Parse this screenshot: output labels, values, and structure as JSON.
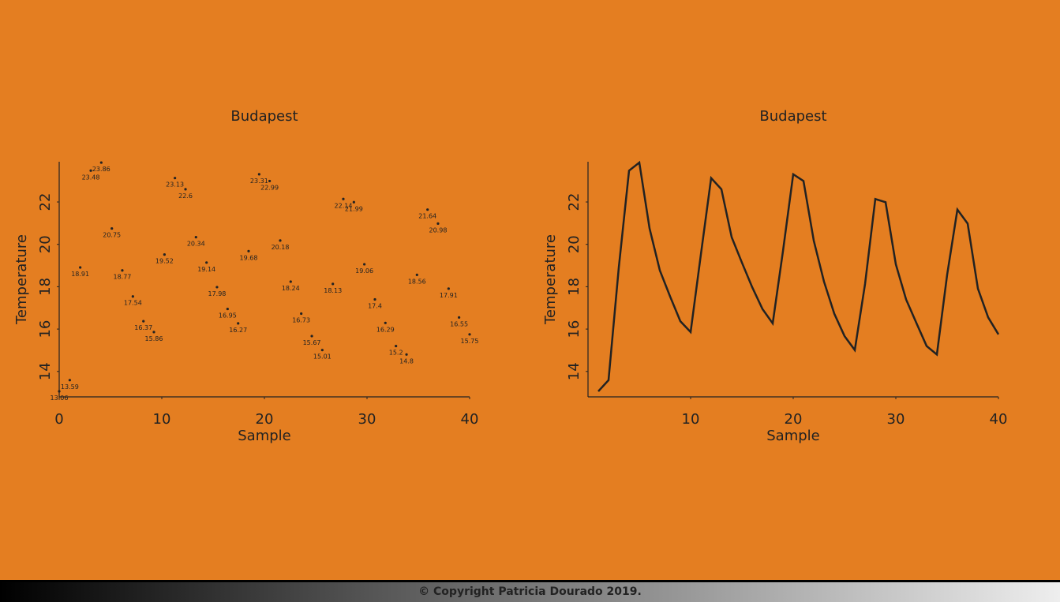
{
  "chart_data": [
    {
      "type": "scatter",
      "title": "Budapest",
      "x_label": "Sample",
      "y_label": "Temperature",
      "color": "#222222",
      "x": [
        0,
        1.03,
        2.05,
        3.08,
        4.1,
        5.13,
        6.15,
        7.18,
        8.21,
        9.23,
        10.26,
        11.28,
        12.31,
        13.33,
        14.36,
        15.38,
        16.41,
        17.44,
        18.46,
        19.49,
        20.51,
        21.54,
        22.56,
        23.59,
        24.62,
        25.64,
        26.67,
        27.69,
        28.72,
        29.74,
        30.77,
        31.79,
        32.82,
        33.85,
        34.87,
        35.9,
        36.92,
        37.95,
        38.97,
        40
      ],
      "values": [
        13.06,
        13.59,
        18.91,
        23.48,
        23.86,
        20.75,
        18.77,
        17.54,
        16.37,
        15.86,
        19.52,
        23.13,
        22.6,
        20.34,
        19.14,
        17.98,
        16.95,
        16.27,
        19.68,
        23.31,
        22.99,
        20.18,
        18.24,
        16.73,
        15.67,
        15.01,
        18.13,
        22.14,
        21.99,
        19.06,
        17.4,
        16.29,
        15.2,
        14.8,
        18.56,
        21.64,
        20.98,
        17.91,
        16.55,
        15.75
      ],
      "xlim": [
        0,
        40
      ],
      "xticks": [
        0,
        10,
        20,
        30,
        40
      ],
      "ylim": [
        12.8,
        23.9
      ],
      "yticks": [
        14,
        16,
        18,
        20,
        22
      ]
    },
    {
      "type": "line",
      "title": "Budapest",
      "x_label": "Sample",
      "y_label": "Temperature",
      "color": "#222222",
      "x": [
        1,
        2,
        3,
        4,
        5,
        6,
        7,
        8,
        9,
        10,
        11,
        12,
        13,
        14,
        15,
        16,
        17,
        18,
        19,
        20,
        21,
        22,
        23,
        24,
        25,
        26,
        27,
        28,
        29,
        30,
        31,
        32,
        33,
        34,
        35,
        36,
        37,
        38,
        39,
        40
      ],
      "values": [
        13.06,
        13.59,
        18.91,
        23.48,
        23.86,
        20.75,
        18.77,
        17.54,
        16.37,
        15.86,
        19.52,
        23.13,
        22.6,
        20.34,
        19.14,
        17.98,
        16.95,
        16.27,
        19.68,
        23.31,
        22.99,
        20.18,
        18.24,
        16.73,
        15.67,
        15.01,
        18.13,
        22.14,
        21.99,
        19.06,
        17.4,
        16.29,
        15.2,
        14.8,
        18.56,
        21.64,
        20.98,
        17.91,
        16.55,
        15.75
      ],
      "xlim": [
        0,
        40
      ],
      "xticks": [
        10,
        20,
        30,
        40
      ],
      "ylim": [
        12.8,
        23.9
      ],
      "yticks": [
        14,
        16,
        18,
        20,
        22
      ]
    }
  ],
  "footer": {
    "text": "© Copyright Patricia Dourado 2019."
  }
}
